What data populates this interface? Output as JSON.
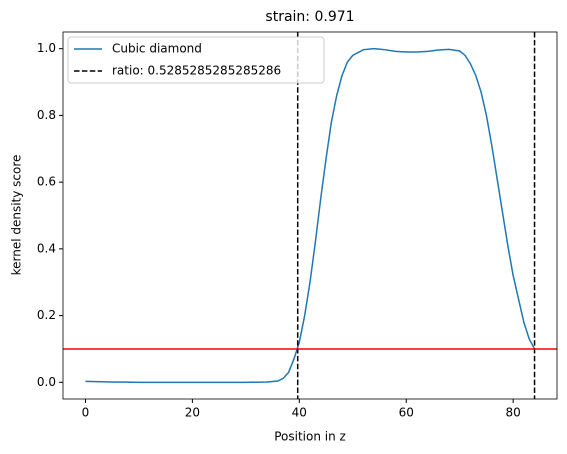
{
  "chart_data": {
    "type": "line",
    "title": "strain: 0.971",
    "xlabel": "Position in z",
    "ylabel": "kernel density score",
    "x": [
      0,
      5,
      10,
      15,
      20,
      25,
      30,
      34,
      36,
      37,
      38,
      39,
      40,
      41,
      42,
      43,
      44,
      45,
      46,
      47,
      48,
      49,
      50,
      52,
      54,
      56,
      58,
      60,
      62,
      64,
      66,
      68,
      70,
      71,
      72,
      73,
      74,
      75,
      76,
      77,
      78,
      79,
      80,
      81,
      82,
      83,
      84
    ],
    "series": [
      {
        "name": "Cubic diamond",
        "color": "#1f77b4",
        "values": [
          0.003,
          0.001,
          0.0,
          0.0,
          0.0,
          0.0,
          0.0,
          0.001,
          0.004,
          0.012,
          0.03,
          0.07,
          0.12,
          0.2,
          0.3,
          0.42,
          0.55,
          0.67,
          0.78,
          0.86,
          0.92,
          0.96,
          0.98,
          0.997,
          1.0,
          0.997,
          0.992,
          0.99,
          0.99,
          0.992,
          0.996,
          0.998,
          0.993,
          0.98,
          0.955,
          0.92,
          0.87,
          0.8,
          0.71,
          0.61,
          0.51,
          0.41,
          0.32,
          0.25,
          0.18,
          0.13,
          0.1
        ]
      },
      {
        "name": "ratio: 0.5285285285285286",
        "color": "#000000",
        "vlines": [
          39.7,
          84
        ]
      }
    ],
    "hline": {
      "value": 0.1,
      "color": "#ff0000"
    },
    "xlim": [
      -4.2,
      88.2
    ],
    "xticks": [
      0,
      20,
      40,
      60,
      80
    ],
    "ylim": [
      -0.05,
      1.05
    ],
    "yticks": [
      {
        "value": 0,
        "label": "0.0"
      },
      {
        "value": 0.2,
        "label": "0.2"
      },
      {
        "value": 0.4,
        "label": "0.4"
      },
      {
        "value": 0.6,
        "label": "0.6"
      },
      {
        "value": 0.8,
        "label": "0.8"
      },
      {
        "value": 1,
        "label": "1.0"
      }
    ],
    "legend": "upper left"
  }
}
